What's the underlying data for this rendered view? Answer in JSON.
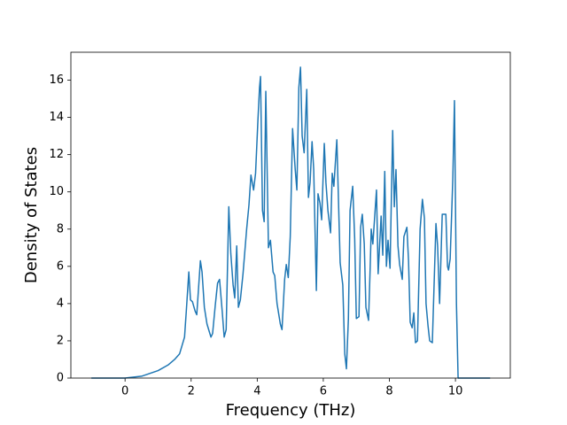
{
  "chart_data": {
    "type": "line",
    "x_label": "Frequency (THz)",
    "y_label": "Density of States",
    "x": [
      -1.02,
      0,
      0.5,
      1.0,
      1.3,
      1.5,
      1.65,
      1.8,
      1.85,
      1.93,
      1.98,
      2.04,
      2.12,
      2.17,
      2.28,
      2.33,
      2.4,
      2.48,
      2.6,
      2.65,
      2.73,
      2.8,
      2.86,
      2.94,
      3.0,
      3.06,
      3.14,
      3.2,
      3.27,
      3.32,
      3.38,
      3.43,
      3.49,
      3.57,
      3.68,
      3.75,
      3.81,
      3.89,
      3.95,
      4.02,
      4.07,
      4.1,
      4.16,
      4.21,
      4.26,
      4.34,
      4.4,
      4.48,
      4.53,
      4.6,
      4.7,
      4.75,
      4.83,
      4.88,
      4.94,
      5.0,
      5.07,
      5.15,
      5.2,
      5.26,
      5.31,
      5.36,
      5.42,
      5.5,
      5.55,
      5.6,
      5.66,
      5.71,
      5.79,
      5.84,
      5.9,
      5.95,
      6.03,
      6.08,
      6.14,
      6.22,
      6.27,
      6.32,
      6.41,
      6.46,
      6.51,
      6.59,
      6.65,
      6.7,
      6.76,
      6.81,
      6.89,
      6.95,
      7.0,
      7.08,
      7.13,
      7.18,
      7.24,
      7.29,
      7.37,
      7.42,
      7.45,
      7.5,
      7.61,
      7.66,
      7.75,
      7.8,
      7.86,
      7.91,
      7.96,
      8.02,
      8.1,
      8.15,
      8.2,
      8.26,
      8.31,
      8.39,
      8.44,
      8.53,
      8.58,
      8.63,
      8.69,
      8.74,
      8.79,
      8.85,
      8.93,
      9.0,
      9.06,
      9.11,
      9.17,
      9.22,
      9.3,
      9.36,
      9.41,
      9.46,
      9.52,
      9.6,
      9.71,
      9.76,
      9.79,
      9.84,
      9.92,
      9.97,
      10.03,
      10.08,
      11.05
    ],
    "series": [
      {
        "color": "#1f77b4",
        "values": [
          0,
          0,
          0.1,
          0.4,
          0.7,
          1.0,
          1.3,
          2.2,
          3.5,
          5.7,
          4.2,
          4.1,
          3.6,
          3.4,
          6.3,
          5.7,
          3.8,
          2.9,
          2.2,
          2.4,
          3.9,
          5.1,
          5.3,
          3.6,
          2.2,
          2.6,
          9.2,
          6.7,
          5.0,
          4.3,
          7.1,
          3.8,
          4.2,
          5.6,
          8.0,
          9.3,
          10.9,
          10.1,
          11.0,
          13.8,
          15.6,
          16.2,
          9.0,
          8.4,
          15.4,
          7.0,
          7.4,
          5.7,
          5.5,
          4.0,
          2.9,
          2.6,
          5.3,
          6.1,
          5.4,
          7.6,
          13.4,
          11.2,
          10.1,
          15.6,
          16.7,
          13.0,
          12.1,
          15.5,
          9.7,
          10.5,
          12.7,
          11.2,
          4.7,
          9.9,
          9.4,
          8.5,
          12.6,
          10.5,
          9.0,
          7.8,
          11.0,
          10.3,
          12.8,
          9.5,
          6.2,
          5.0,
          1.3,
          0.5,
          3.2,
          9.0,
          10.3,
          7.5,
          3.2,
          3.3,
          8.1,
          8.8,
          7.2,
          3.8,
          3.1,
          6.0,
          8.0,
          7.2,
          10.1,
          5.6,
          8.7,
          6.6,
          11.1,
          6.0,
          7.4,
          5.9,
          13.3,
          9.2,
          11.2,
          7.1,
          6.1,
          5.3,
          7.6,
          8.1,
          6.3,
          3.0,
          2.7,
          3.5,
          1.9,
          2.0,
          8.0,
          9.6,
          8.6,
          4.0,
          2.8,
          2.0,
          1.9,
          5.4,
          8.3,
          7.1,
          4.0,
          8.8,
          8.8,
          6.0,
          5.8,
          6.4,
          10.7,
          14.9,
          4.0,
          0,
          0
        ]
      }
    ],
    "xlim": [
      -1.64,
      11.66
    ],
    "ylim": [
      0,
      17.5
    ],
    "xticks": [
      0,
      2,
      4,
      6,
      8,
      10
    ],
    "yticks": [
      0,
      2,
      4,
      6,
      8,
      10,
      12,
      14,
      16
    ]
  }
}
